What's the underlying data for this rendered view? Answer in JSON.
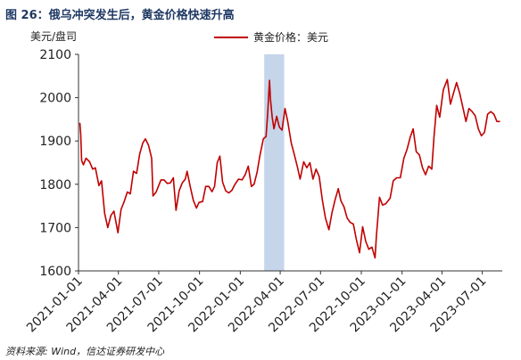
{
  "title": "图 26：俄乌冲突发生后，黄金价格快速升高",
  "unit_label": "美元/盘司",
  "source": "资料来源: Wind，信达证券研发中心",
  "colors": {
    "line": "#c00000",
    "shade": "#c5d5ea",
    "title": "#1f3864"
  },
  "chart_data": {
    "type": "line",
    "title": "图 26：俄乌冲突发生后，黄金价格快速升高",
    "ylabel": "美元/盘司",
    "xlabel": "",
    "ylim": [
      1600,
      2100
    ],
    "yticks": [
      1600,
      1700,
      1800,
      1900,
      2000,
      2100
    ],
    "xlim": [
      "2021-01-01",
      "2023-08-15"
    ],
    "xticks": [
      "2021-01-01",
      "2021-04-01",
      "2021-07-01",
      "2021-10-01",
      "2022-01-01",
      "2022-04-01",
      "2022-07-01",
      "2022-10-01",
      "2023-01-01",
      "2023-04-01",
      "2023-07-01"
    ],
    "grid": false,
    "legend": "top-center",
    "shaded_region": [
      "2022-02-24",
      "2022-04-10"
    ],
    "series": [
      {
        "name": "黄金价格：美元",
        "x": [
          "2021-01-04",
          "2021-01-06",
          "2021-01-08",
          "2021-01-12",
          "2021-01-18",
          "2021-01-26",
          "2021-02-02",
          "2021-02-08",
          "2021-02-16",
          "2021-02-22",
          "2021-03-01",
          "2021-03-08",
          "2021-03-15",
          "2021-03-22",
          "2021-03-31",
          "2021-04-07",
          "2021-04-14",
          "2021-04-21",
          "2021-04-28",
          "2021-05-05",
          "2021-05-12",
          "2021-05-19",
          "2021-05-26",
          "2021-06-01",
          "2021-06-08",
          "2021-06-15",
          "2021-06-18",
          "2021-06-25",
          "2021-07-06",
          "2021-07-13",
          "2021-07-20",
          "2021-07-27",
          "2021-08-03",
          "2021-08-09",
          "2021-08-16",
          "2021-08-23",
          "2021-08-30",
          "2021-09-03",
          "2021-09-10",
          "2021-09-17",
          "2021-09-24",
          "2021-09-30",
          "2021-10-08",
          "2021-10-15",
          "2021-10-22",
          "2021-10-29",
          "2021-11-04",
          "2021-11-10",
          "2021-11-16",
          "2021-11-22",
          "2021-11-29",
          "2021-12-06",
          "2021-12-13",
          "2021-12-20",
          "2021-12-28",
          "2022-01-05",
          "2022-01-12",
          "2022-01-19",
          "2022-01-26",
          "2022-02-01",
          "2022-02-08",
          "2022-02-14",
          "2022-02-22",
          "2022-02-28",
          "2022-03-04",
          "2022-03-08",
          "2022-03-10",
          "2022-03-14",
          "2022-03-18",
          "2022-03-24",
          "2022-03-30",
          "2022-04-05",
          "2022-04-12",
          "2022-04-18",
          "2022-04-26",
          "2022-05-03",
          "2022-05-10",
          "2022-05-16",
          "2022-05-24",
          "2022-05-31",
          "2022-06-07",
          "2022-06-14",
          "2022-06-21",
          "2022-06-28",
          "2022-07-05",
          "2022-07-12",
          "2022-07-20",
          "2022-07-27",
          "2022-08-03",
          "2022-08-10",
          "2022-08-16",
          "2022-08-23",
          "2022-08-30",
          "2022-09-06",
          "2022-09-13",
          "2022-09-20",
          "2022-09-27",
          "2022-10-04",
          "2022-10-11",
          "2022-10-18",
          "2022-10-25",
          "2022-11-01",
          "2022-11-04",
          "2022-11-11",
          "2022-11-18",
          "2022-11-25",
          "2022-12-05",
          "2022-12-12",
          "2022-12-20",
          "2022-12-28",
          "2023-01-05",
          "2023-01-12",
          "2023-01-19",
          "2023-01-26",
          "2023-02-02",
          "2023-02-09",
          "2023-02-16",
          "2023-02-23",
          "2023-03-02",
          "2023-03-09",
          "2023-03-14",
          "2023-03-20",
          "2023-03-27",
          "2023-04-04",
          "2023-04-13",
          "2023-04-20",
          "2023-04-27",
          "2023-05-04",
          "2023-05-11",
          "2023-05-18",
          "2023-05-25",
          "2023-06-01",
          "2023-06-08",
          "2023-06-15",
          "2023-06-22",
          "2023-06-29",
          "2023-07-06",
          "2023-07-13",
          "2023-07-20",
          "2023-07-27",
          "2023-08-03",
          "2023-08-10"
        ],
        "values": [
          1942,
          1915,
          1855,
          1845,
          1860,
          1852,
          1835,
          1838,
          1797,
          1808,
          1733,
          1700,
          1728,
          1738,
          1688,
          1742,
          1760,
          1782,
          1778,
          1830,
          1825,
          1870,
          1895,
          1905,
          1890,
          1860,
          1773,
          1782,
          1810,
          1810,
          1802,
          1803,
          1815,
          1740,
          1785,
          1803,
          1812,
          1830,
          1795,
          1763,
          1745,
          1758,
          1760,
          1795,
          1795,
          1783,
          1795,
          1850,
          1865,
          1805,
          1785,
          1780,
          1786,
          1800,
          1812,
          1810,
          1822,
          1842,
          1795,
          1800,
          1828,
          1865,
          1905,
          1910,
          1968,
          2040,
          1998,
          1955,
          1928,
          1957,
          1932,
          1925,
          1975,
          1945,
          1895,
          1868,
          1840,
          1812,
          1852,
          1838,
          1850,
          1812,
          1835,
          1818,
          1764,
          1722,
          1695,
          1735,
          1765,
          1790,
          1762,
          1748,
          1722,
          1712,
          1708,
          1672,
          1642,
          1702,
          1668,
          1650,
          1655,
          1630,
          1680,
          1770,
          1752,
          1755,
          1768,
          1808,
          1815,
          1815,
          1860,
          1880,
          1908,
          1928,
          1875,
          1868,
          1838,
          1822,
          1842,
          1835,
          1910,
          1982,
          1955,
          2018,
          2042,
          1985,
          2010,
          2035,
          2010,
          1978,
          1945,
          1975,
          1968,
          1958,
          1928,
          1912,
          1920,
          1962,
          1968,
          1962,
          1945,
          1945
        ]
      }
    ]
  }
}
